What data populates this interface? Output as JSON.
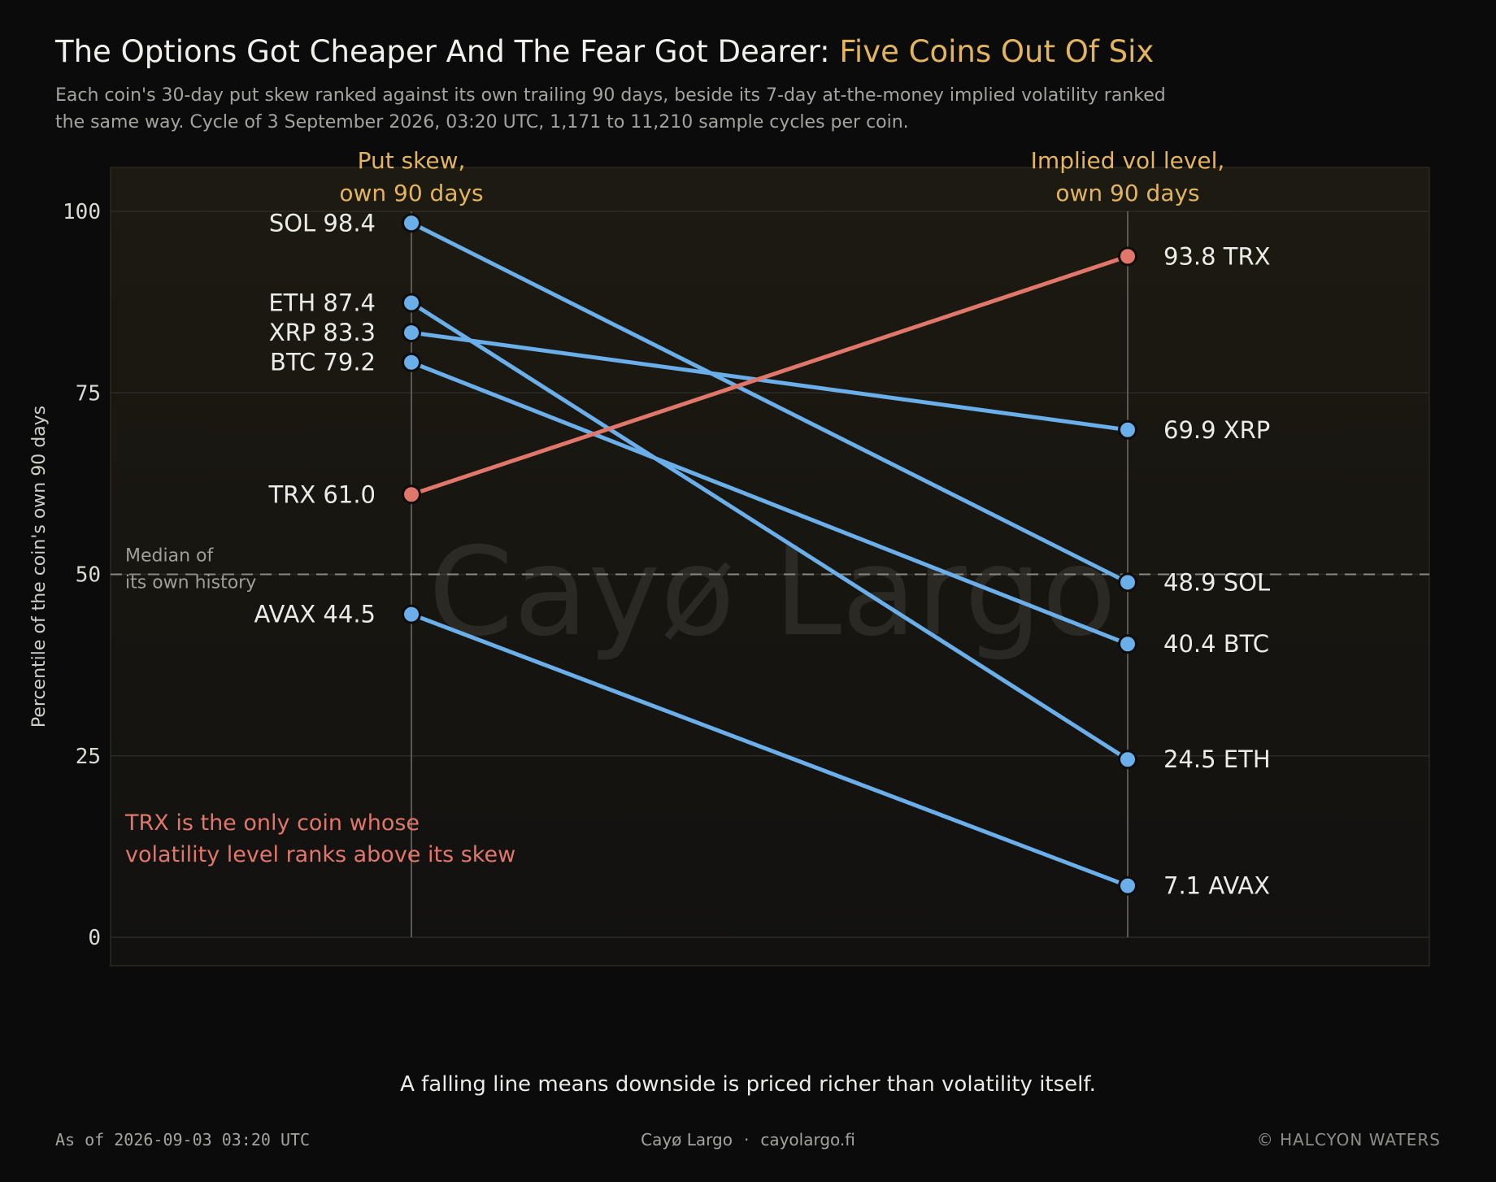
{
  "header": {
    "title_main": "The Options Got Cheaper And The Fear Got Dearer: ",
    "title_accent": "Five Coins Out Of Six",
    "subtitle_line1": "Each coin's 30-day put skew ranked against its own trailing 90 days, beside its 7-day at-the-money implied volatility ranked",
    "subtitle_line2": "the same way. Cycle of 3 September 2026, 03:20 UTC, 1,171 to 11,210 sample cycles per coin."
  },
  "colors": {
    "falling": "#6aaeea",
    "rising": "#e0776a",
    "accent": "#e3b45e"
  },
  "chart_data": {
    "type": "slope",
    "columns": [
      {
        "line1": "Put skew,",
        "line2": "own 90 days"
      },
      {
        "line1": "Implied vol level,",
        "line2": "own 90 days"
      }
    ],
    "ylabel": "Percentile of the coin's own 90 days",
    "ylim": [
      0,
      100
    ],
    "yticks": [
      "0",
      "25",
      "50",
      "75",
      "100"
    ],
    "reference_line": {
      "value": 50,
      "label_line1": "Median of",
      "label_line2": "its own history"
    },
    "series": [
      {
        "name": "SOL",
        "skew": 98.4,
        "skew_text": "98.4",
        "vol": 48.9,
        "vol_text": "48.9"
      },
      {
        "name": "ETH",
        "skew": 87.4,
        "skew_text": "87.4",
        "vol": 24.5,
        "vol_text": "24.5"
      },
      {
        "name": "XRP",
        "skew": 83.3,
        "skew_text": "83.3",
        "vol": 69.9,
        "vol_text": "69.9"
      },
      {
        "name": "BTC",
        "skew": 79.2,
        "skew_text": "79.2",
        "vol": 40.4,
        "vol_text": "40.4"
      },
      {
        "name": "TRX",
        "skew": 61.0,
        "skew_text": "61.0",
        "vol": 93.8,
        "vol_text": "93.8"
      },
      {
        "name": "AVAX",
        "skew": 44.5,
        "skew_text": "44.5",
        "vol": 7.1,
        "vol_text": "7.1"
      }
    ],
    "annotation_line1": "TRX is the only coin whose",
    "annotation_line2": "volatility level ranks above its skew",
    "watermark": "Cayø Largo"
  },
  "caption": "A falling line means downside is priced richer than volatility itself.",
  "footer": {
    "as_of": "As of 2026-09-03 03:20 UTC",
    "brand": "Cayø Largo",
    "separator": "·",
    "site": "cayolargo.fi",
    "copyright": "© HALCYON WATERS"
  }
}
